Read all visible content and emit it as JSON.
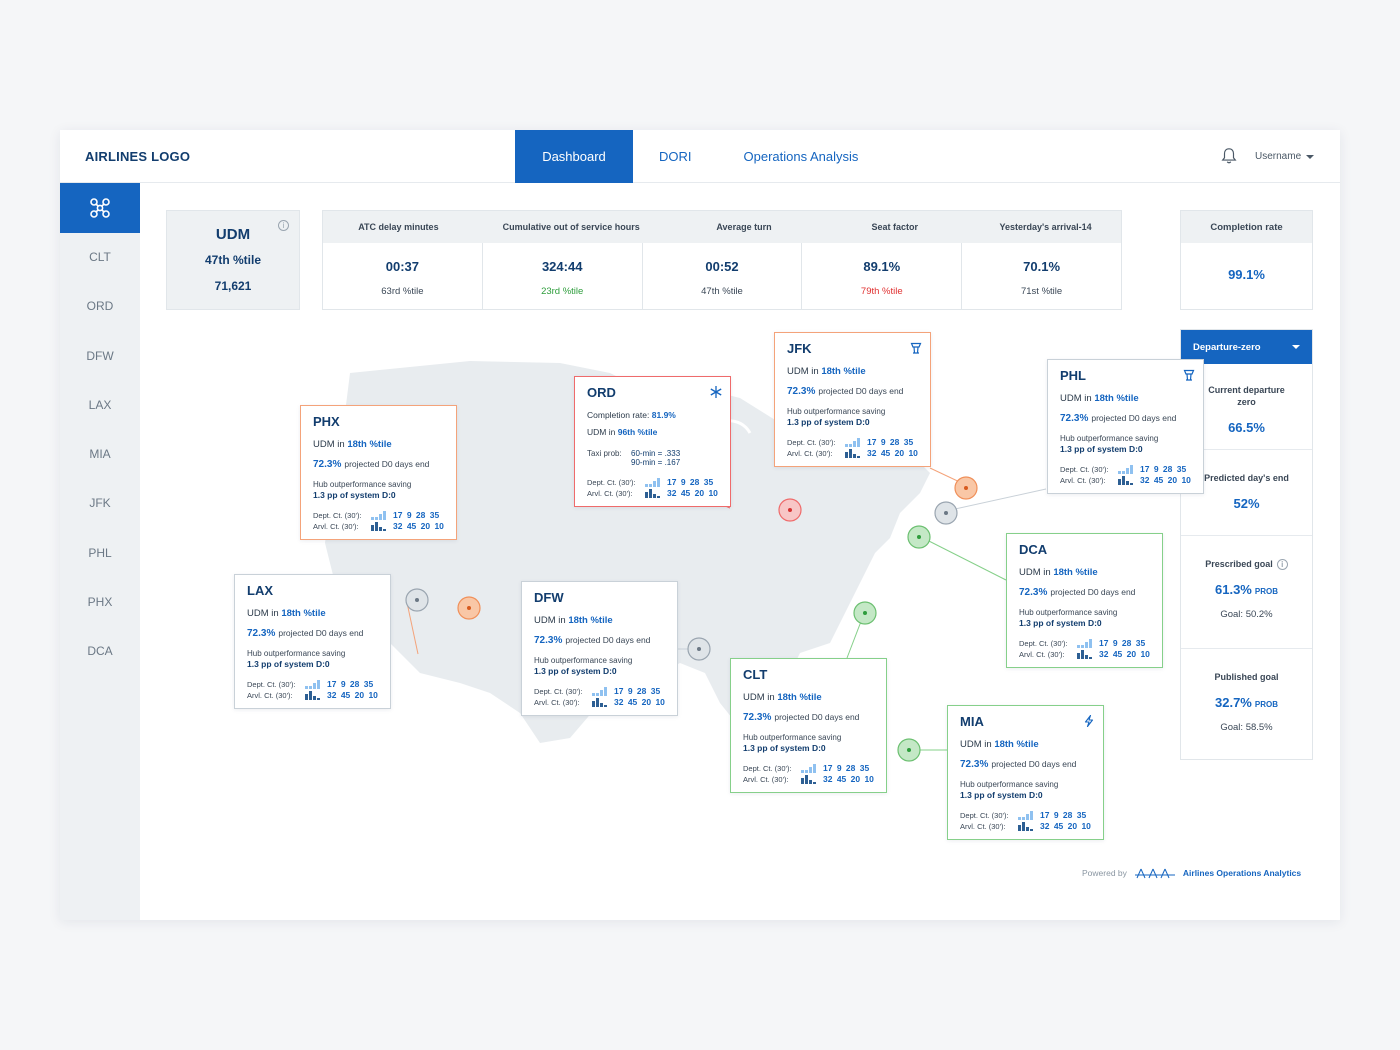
{
  "header": {
    "logo": "AIRLINES LOGO",
    "tabs": [
      "Dashboard",
      "DORI",
      "Operations Analysis"
    ],
    "username": "Username"
  },
  "sidebar": {
    "items": [
      "CLT",
      "ORD",
      "DFW",
      "LAX",
      "MIA",
      "JFK",
      "PHL",
      "PHX",
      "DCA"
    ]
  },
  "udm": {
    "title": "UDM",
    "percentile": "47th %tile",
    "value": "71,621"
  },
  "kpis": [
    {
      "label": "ATC delay minutes",
      "value": "00:37",
      "sub": "63rd %tile",
      "sub_color": "#3a4756"
    },
    {
      "label": "Cumulative out of service hours",
      "value": "324:44",
      "sub": "23rd %tile",
      "sub_color": "#2e9d3c"
    },
    {
      "label": "Average turn",
      "value": "00:52",
      "sub": "47th %tile",
      "sub_color": "#3a4756"
    },
    {
      "label": "Seat factor",
      "value": "89.1%",
      "sub": "79th %tile",
      "sub_color": "#e03131"
    },
    {
      "label": "Yesterday's arrival-14",
      "value": "70.1%",
      "sub": "71st %tile",
      "sub_color": "#3a4756"
    }
  ],
  "completion": {
    "label": "Completion rate",
    "value": "99.1%"
  },
  "departure_zero": {
    "dropdown": "Departure-zero",
    "current_label": "Current departure zero",
    "current_value": "66.5%",
    "predicted_label": "Predicted day's end",
    "predicted_value": "52%",
    "prescribed_label": "Prescribed goal",
    "prescribed_value": "61.3%",
    "prescribed_unit": "PROB",
    "prescribed_goal": "Goal: 50.2%",
    "published_label": "Published goal",
    "published_value": "32.7%",
    "published_unit": "PROB",
    "published_goal": "Goal: 58.5%"
  },
  "common": {
    "udm_in": "UDM in",
    "pct_18": "18th %tile",
    "projected_val": "72.3%",
    "projected_txt": "projected D0 days end",
    "hub_txt": "Hub outperformance saving",
    "hub_val": "1.3 pp of system D:0",
    "dept": "Dept. Ct. (30'):",
    "arvl": "Arvl. Ct. (30'):",
    "dept_nums": "17 9 28 35",
    "arvl_nums": "32 45 20 10"
  },
  "ord": {
    "code": "ORD",
    "completion_label": "Completion rate:",
    "completion_value": "81.9%",
    "udm_pct": "96th %tile",
    "taxi_label": "Taxi prob:",
    "taxi_60": "60-min = .333",
    "taxi_90": "90-min = .167"
  },
  "airports": {
    "phx": "PHX",
    "jfk": "JFK",
    "phl": "PHL",
    "lax": "LAX",
    "dfw": "DFW",
    "dca": "DCA",
    "clt": "CLT",
    "mia": "MIA"
  },
  "footer": {
    "powered": "Powered by",
    "brand": "Airlines Operations Analytics"
  },
  "colors": {
    "primary": "#1565c0",
    "orange": "#f4a37a",
    "red": "#ef6b6b",
    "green": "#86d08a",
    "gray": "#c9d1d8"
  }
}
